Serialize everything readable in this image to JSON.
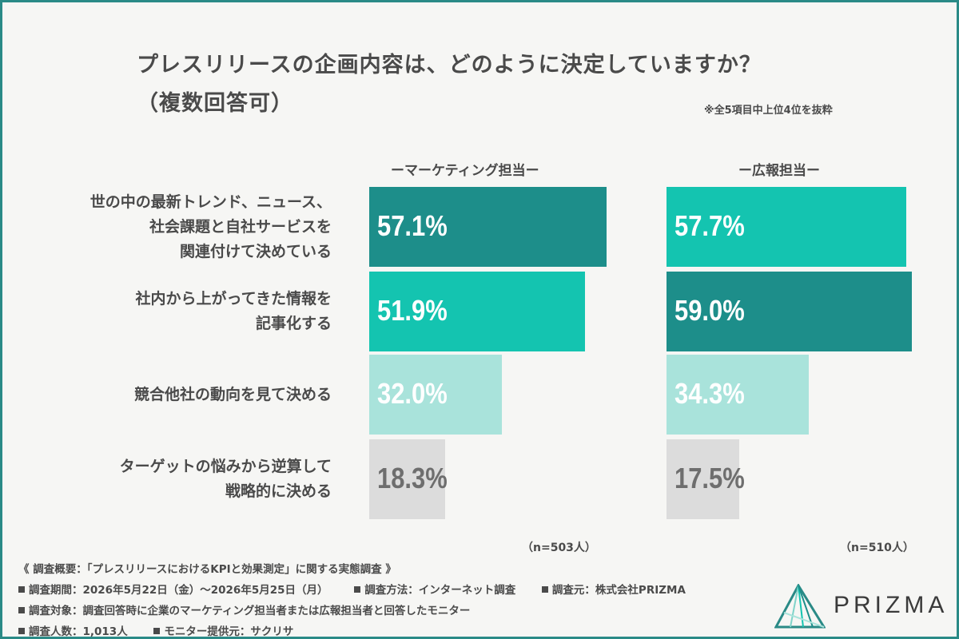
{
  "title": "プレスリリースの企画内容は、どのように決定していますか？",
  "subtitle": "（複数回答可）",
  "note": "※全5項目中上位4位を抜粋",
  "chart_data": {
    "type": "bar",
    "orientation": "horizontal",
    "categories": [
      [
        "世の中の最新トレンド、ニュース、",
        "社会課題と自社サービスを",
        "関連付けて決めている"
      ],
      [
        "社内から上がってきた情報を",
        "記事化する"
      ],
      [
        "競合他社の動向を見て決める"
      ],
      [
        "ターゲットの悩みから逆算して",
        "戦略的に決める"
      ]
    ],
    "series": [
      {
        "name": "ーマーケティング担当ー",
        "values": [
          57.1,
          51.9,
          32.0,
          18.3
        ],
        "value_labels": [
          "57.1%",
          "51.9%",
          "32.0%",
          "18.3%"
        ],
        "n_label": "（n=503人）"
      },
      {
        "name": "ー広報担当ー",
        "values": [
          57.7,
          59.0,
          34.3,
          17.5
        ],
        "value_labels": [
          "57.7%",
          "59.0%",
          "34.3%",
          "17.5%"
        ],
        "n_label": "（n=510人）"
      }
    ],
    "rank_colors": [
      "#1d8e8a",
      "#14c4b0",
      "#a9e3db",
      "#dcdcdc"
    ],
    "rank_text_colors": [
      "#ffffff",
      "#ffffff",
      "#ffffff",
      "#6e6e6e"
    ]
  },
  "footer": {
    "line1": "《 調査概要：「プレスリリースにおけるKPIと効果測定」に関する実態調査 》",
    "period": "調査期間：2026年5月22日（金）〜2026年5月25日（月）",
    "method": "調査方法：インターネット調査",
    "source": "調査元：株式会社PRIZMA",
    "target": "調査対象：調査回答時に企業のマーケティング担当者または広報担当者と回答したモニター",
    "count": "調査人数：1,013人",
    "provider": "モニター提供元：サクリサ"
  },
  "logo": {
    "text": "PRIZMA",
    "icon": "prism-logo-icon"
  }
}
